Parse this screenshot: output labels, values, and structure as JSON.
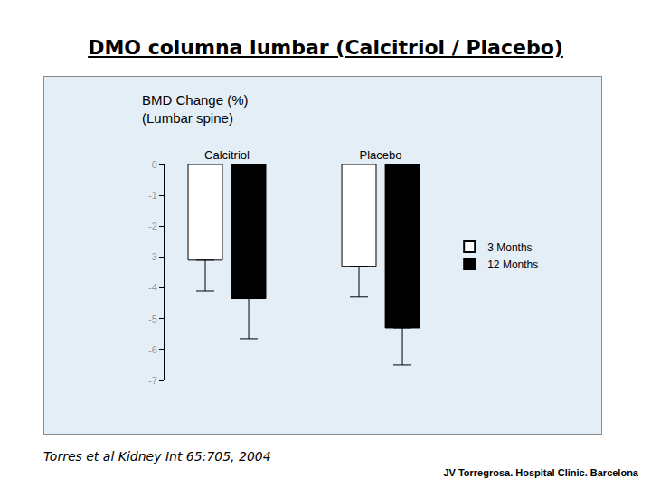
{
  "chart_data": {
    "type": "bar",
    "title": "DMO columna lumbar (Calcitriol / Placebo)",
    "ylabel": "BMD Change (%)\n(Lumbar spine)",
    "categories": [
      "Calcitriol",
      "Placebo"
    ],
    "series": [
      {
        "name": "3 Months",
        "color": "#ffffff",
        "values": [
          -3.1,
          -3.3
        ],
        "errors": [
          1.0,
          1.0
        ]
      },
      {
        "name": "12 Months",
        "color": "#000000",
        "values": [
          -4.35,
          -5.3
        ],
        "errors": [
          1.3,
          1.2
        ]
      }
    ],
    "ylim": [
      -7,
      0
    ],
    "yticks": [
      0,
      -1,
      -2,
      -3,
      -4,
      -5,
      -6,
      -7
    ],
    "grid": false,
    "legend": "right",
    "annotations": [
      "Torres et al Kidney Int 65:705, 2004",
      "JV Torregrosa. Hospital Clinic. Barcelona"
    ]
  }
}
